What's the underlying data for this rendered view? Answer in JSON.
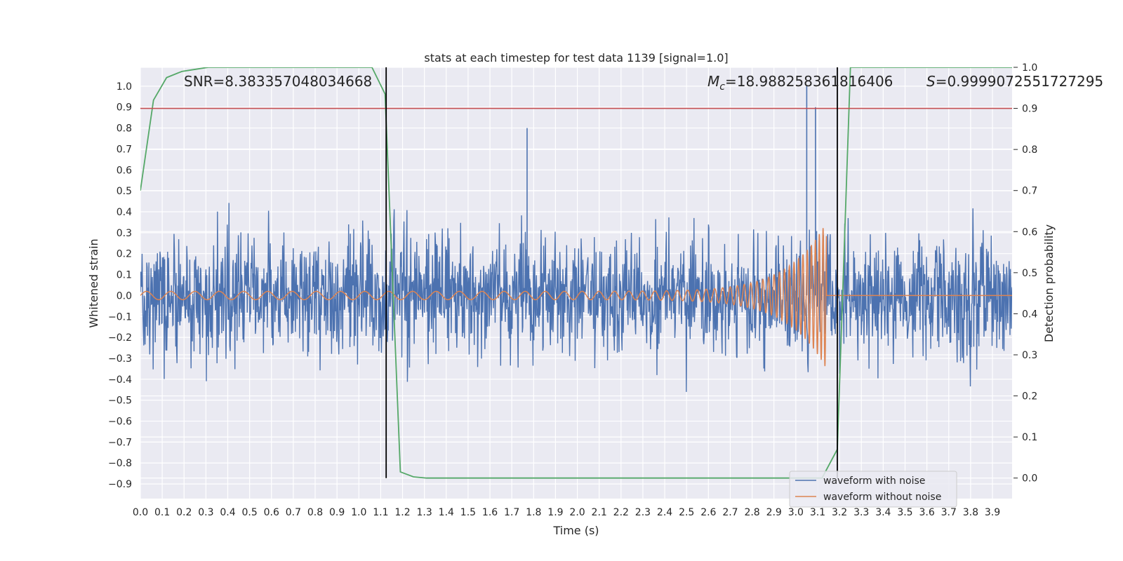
{
  "chart_data": {
    "type": "line",
    "title": "stats at each timestep for test data 1139 [signal=1.0]",
    "xlabel": "Time (s)",
    "ylabel": "Whitened strain",
    "y2label": "Detection probability",
    "xlim": [
      0.0,
      3.99
    ],
    "ylim": [
      -0.97,
      1.09
    ],
    "y2lim": [
      -0.05,
      1.0
    ],
    "xticks": [
      "0.0",
      "0.1",
      "0.2",
      "0.3",
      "0.4",
      "0.5",
      "0.6",
      "0.7",
      "0.8",
      "0.9",
      "1.0",
      "1.1",
      "1.2",
      "1.3",
      "1.4",
      "1.5",
      "1.6",
      "1.7",
      "1.8",
      "1.9",
      "2.0",
      "2.1",
      "2.2",
      "2.3",
      "2.4",
      "2.5",
      "2.6",
      "2.7",
      "2.8",
      "2.9",
      "3.0",
      "3.1",
      "3.2",
      "3.3",
      "3.4",
      "3.5",
      "3.6",
      "3.7",
      "3.8",
      "3.9"
    ],
    "yticks": [
      "-0.9",
      "-0.8",
      "-0.7",
      "-0.6",
      "-0.5",
      "-0.4",
      "-0.3",
      "-0.2",
      "-0.1",
      "0.0",
      "0.1",
      "0.2",
      "0.3",
      "0.4",
      "0.5",
      "0.6",
      "0.7",
      "0.8",
      "0.9",
      "1.0"
    ],
    "y2ticks": [
      "0.0",
      "0.1",
      "0.2",
      "0.3",
      "0.4",
      "0.5",
      "0.6",
      "0.7",
      "0.8",
      "0.9",
      "1.0"
    ],
    "grid": true,
    "legend_position": "lower-right",
    "series": [
      {
        "name": "waveform with noise",
        "color": "#4c72b0",
        "axis": "left",
        "description_values": {
          "typical_envelope": [
            -0.45,
            0.45
          ],
          "min": -0.88,
          "max": 1.0
        }
      },
      {
        "name": "waveform without noise",
        "color": "#dd8452",
        "axis": "left",
        "chirp": {
          "start_time": 0.0,
          "merger_time": 3.14,
          "start_amplitude": 0.02,
          "peak_amplitude": 0.35,
          "start_freq_hz": 9,
          "end_freq_hz": 60
        }
      },
      {
        "name": "",
        "color": "#55a868",
        "axis": "right",
        "x": [
          0.0,
          0.06,
          0.12,
          0.19,
          0.25,
          0.31,
          0.37,
          0.44,
          0.5,
          0.56,
          0.62,
          0.69,
          0.75,
          0.81,
          0.87,
          0.94,
          1.0,
          1.06,
          1.12,
          1.19,
          1.25,
          1.31,
          1.37,
          1.44,
          1.5,
          1.56,
          1.62,
          1.69,
          1.75,
          1.81,
          1.87,
          1.94,
          2.0,
          2.06,
          2.12,
          2.19,
          2.25,
          2.31,
          2.37,
          2.44,
          2.5,
          2.56,
          2.62,
          2.69,
          2.75,
          2.81,
          2.87,
          2.94,
          3.0,
          3.06,
          3.12,
          3.19,
          3.25,
          3.31,
          3.37,
          3.44,
          3.5,
          3.56,
          3.62,
          3.69,
          3.75,
          3.81,
          3.87,
          3.94,
          3.99
        ],
        "values": [
          0.7,
          0.92,
          0.975,
          0.99,
          0.995,
          1.0,
          1.0,
          1.0,
          1.0,
          1.0,
          1.0,
          1.0,
          1.0,
          1.0,
          1.0,
          1.0,
          1.0,
          1.0,
          0.935,
          0.015,
          0.003,
          0.0,
          0.0,
          0.0,
          0.0,
          0.0,
          0.0,
          0.0,
          0.0,
          0.0,
          0.0,
          0.0,
          0.0,
          0.0,
          0.0,
          0.0,
          0.0,
          0.0,
          0.0,
          0.0,
          0.0,
          0.0,
          0.0,
          0.0,
          0.0,
          0.0,
          0.0,
          0.0,
          0.0,
          0.0,
          0.0,
          0.07,
          1.0,
          1.0,
          1.0,
          1.0,
          1.0,
          1.0,
          1.0,
          1.0,
          1.0,
          1.0,
          1.0,
          1.0,
          1.0
        ]
      }
    ],
    "threshold_line": {
      "y2": 0.9,
      "color": "#c44e52"
    },
    "vertical_lines": [
      {
        "x": 1.125,
        "color": "#000000"
      },
      {
        "x": 3.19,
        "color": "#000000"
      }
    ],
    "annotations": [
      {
        "id": "snr",
        "text": "SNR=8.383357048034668"
      },
      {
        "id": "mc",
        "symbol": "M",
        "subscript": "c",
        "text": "=18.988258361816406"
      },
      {
        "id": "s",
        "symbol": "S",
        "text": "=0.9999072551727295"
      }
    ],
    "colors": {
      "background": "#eaeaf2",
      "grid": "#ffffff",
      "text": "#262626"
    }
  }
}
